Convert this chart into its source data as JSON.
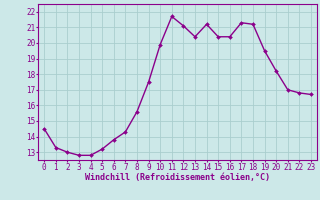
{
  "x": [
    0,
    1,
    2,
    3,
    4,
    5,
    6,
    7,
    8,
    9,
    10,
    11,
    12,
    13,
    14,
    15,
    16,
    17,
    18,
    19,
    20,
    21,
    22,
    23
  ],
  "y": [
    14.5,
    13.3,
    13.0,
    12.8,
    12.8,
    13.2,
    13.8,
    14.3,
    15.6,
    17.5,
    19.9,
    21.7,
    21.1,
    20.4,
    21.2,
    20.4,
    20.4,
    21.3,
    21.2,
    19.5,
    18.2,
    17.0,
    16.8,
    16.7
  ],
  "line_color": "#8B008B",
  "marker": "D",
  "marker_size": 2.0,
  "bg_color": "#cce8e8",
  "grid_color": "#aacece",
  "xlabel": "Windchill (Refroidissement éolien,°C)",
  "ylabel_ticks": [
    13,
    14,
    15,
    16,
    17,
    18,
    19,
    20,
    21,
    22
  ],
  "xlim": [
    -0.5,
    23.5
  ],
  "ylim": [
    12.5,
    22.5
  ],
  "xticks": [
    0,
    1,
    2,
    3,
    4,
    5,
    6,
    7,
    8,
    9,
    10,
    11,
    12,
    13,
    14,
    15,
    16,
    17,
    18,
    19,
    20,
    21,
    22,
    23
  ],
  "xlabel_color": "#8B008B",
  "xlabel_fontsize": 6.0,
  "tick_fontsize": 5.5,
  "line_width": 1.0
}
